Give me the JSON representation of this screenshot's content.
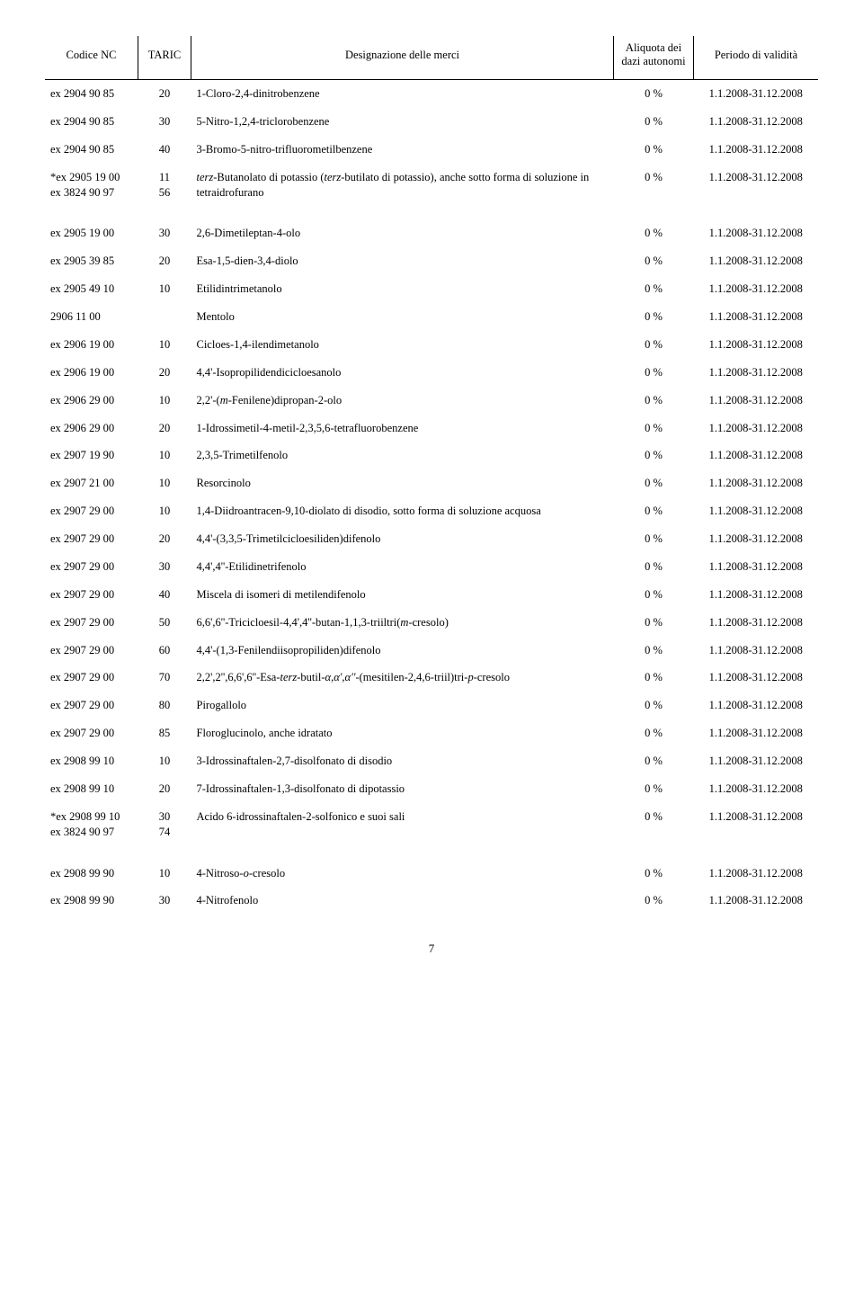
{
  "headers": {
    "nc": "Codice NC",
    "taric": "TARIC",
    "desc": "Designazione delle merci",
    "duty": "Aliquota dei dazi autonomi",
    "period": "Periodo di validità"
  },
  "rows": [
    {
      "nc": "ex 2904 90 85",
      "taric": "20",
      "desc": "1-Cloro-2,4-dinitrobenzene",
      "duty": "0 %",
      "period": "1.1.2008-31.12.2008"
    },
    {
      "nc": "ex 2904 90 85",
      "taric": "30",
      "desc": "5-Nitro-1,2,4-triclorobenzene",
      "duty": "0 %",
      "period": "1.1.2008-31.12.2008"
    },
    {
      "nc": "ex 2904 90 85",
      "taric": "40",
      "desc": "3-Bromo-5-nitro-trifluorometilbenzene",
      "duty": "0 %",
      "period": "1.1.2008-31.12.2008"
    },
    {
      "nc": "*ex 2905 19 00\nex 3824 90 97",
      "taric": "11\n56",
      "desc_html": "<span class='it'>terz</span>-Butanolato di potassio (<span class='it'>terz</span>-butilato di potassio), anche sotto forma di soluzione in tetraidrofurano",
      "duty": "0 %",
      "period": "1.1.2008-31.12.2008"
    },
    {
      "gap": true,
      "nc": "ex 2905 19 00",
      "taric": "30",
      "desc": "2,6-Dimetileptan-4-olo",
      "duty": "0 %",
      "period": "1.1.2008-31.12.2008"
    },
    {
      "nc": "ex 2905 39 85",
      "taric": "20",
      "desc": "Esa-1,5-dien-3,4-diolo",
      "duty": "0 %",
      "period": "1.1.2008-31.12.2008"
    },
    {
      "nc": "ex 2905 49 10",
      "taric": "10",
      "desc": "Etilidintrimetanolo",
      "duty": "0 %",
      "period": "1.1.2008-31.12.2008"
    },
    {
      "nc": "2906 11 00",
      "taric": "",
      "desc": "Mentolo",
      "duty": "0 %",
      "period": "1.1.2008-31.12.2008"
    },
    {
      "nc": "ex 2906 19 00",
      "taric": "10",
      "desc": "Cicloes-1,4-ilendimetanolo",
      "duty": "0 %",
      "period": "1.1.2008-31.12.2008"
    },
    {
      "nc": "ex 2906 19 00",
      "taric": "20",
      "desc": "4,4'-Isopropilidendicicloesanolo",
      "duty": "0 %",
      "period": "1.1.2008-31.12.2008"
    },
    {
      "nc": "ex 2906 29 00",
      "taric": "10",
      "desc_html": "2,2'-(<span class='it'>m</span>-Fenilene)dipropan-2-olo",
      "duty": "0 %",
      "period": "1.1.2008-31.12.2008"
    },
    {
      "nc": "ex 2906 29 00",
      "taric": "20",
      "desc": "1-Idrossimetil-4-metil-2,3,5,6-tetrafluorobenzene",
      "duty": "0 %",
      "period": "1.1.2008-31.12.2008"
    },
    {
      "nc": "ex 2907 19 90",
      "taric": "10",
      "desc": "2,3,5-Trimetilfenolo",
      "duty": "0 %",
      "period": "1.1.2008-31.12.2008"
    },
    {
      "nc": "ex 2907 21 00",
      "taric": "10",
      "desc": "Resorcinolo",
      "duty": "0 %",
      "period": "1.1.2008-31.12.2008"
    },
    {
      "nc": "ex 2907 29 00",
      "taric": "10",
      "desc": "1,4-Diidroantracen-9,10-diolato di disodio, sotto forma di soluzione acquosa",
      "duty": "0 %",
      "period": "1.1.2008-31.12.2008"
    },
    {
      "nc": "ex 2907 29 00",
      "taric": "20",
      "desc": "4,4'-(3,3,5-Trimetilcicloesiliden)difenolo",
      "duty": "0 %",
      "period": "1.1.2008-31.12.2008"
    },
    {
      "nc": "ex 2907 29 00",
      "taric": "30",
      "desc": "4,4',4''-Etilidinetrifenolo",
      "duty": "0 %",
      "period": "1.1.2008-31.12.2008"
    },
    {
      "nc": "ex 2907 29 00",
      "taric": "40",
      "desc": "Miscela di isomeri di metilendifenolo",
      "duty": "0 %",
      "period": "1.1.2008-31.12.2008"
    },
    {
      "nc": "ex 2907 29 00",
      "taric": "50",
      "desc_html": "6,6',6''-Tricicloesil-4,4',4''-butan-1,1,3-triiltri(<span class='it'>m</span>-cresolo)",
      "duty": "0 %",
      "period": "1.1.2008-31.12.2008"
    },
    {
      "nc": "ex 2907 29 00",
      "taric": "60",
      "desc": "4,4'-(1,3-Fenilendiisopropiliden)difenolo",
      "duty": "0 %",
      "period": "1.1.2008-31.12.2008"
    },
    {
      "nc": "ex 2907 29 00",
      "taric": "70",
      "desc_html": "2,2',2'',6,6',6''-Esa-<span class='it'>terz</span>-butil-<span class='it'>α,α',α''</span>-(mesitilen-2,4,6-triil)tri-<span class='it'>p</span>-cresolo",
      "duty": "0 %",
      "period": "1.1.2008-31.12.2008"
    },
    {
      "nc": "ex 2907 29 00",
      "taric": "80",
      "desc": "Pirogallolo",
      "duty": "0 %",
      "period": "1.1.2008-31.12.2008"
    },
    {
      "nc": "ex 2907 29 00",
      "taric": "85",
      "desc": "Floroglucinolo, anche idratato",
      "duty": "0 %",
      "period": "1.1.2008-31.12.2008"
    },
    {
      "nc": "ex 2908 99 10",
      "taric": "10",
      "desc": "3-Idrossinaftalen-2,7-disolfonato di disodio",
      "duty": "0 %",
      "period": "1.1.2008-31.12.2008"
    },
    {
      "nc": "ex 2908 99 10",
      "taric": "20",
      "desc": "7-Idrossinaftalen-1,3-disolfonato di dipotassio",
      "duty": "0 %",
      "period": "1.1.2008-31.12.2008"
    },
    {
      "nc": "*ex 2908 99 10\nex 3824 90 97",
      "taric": "30\n74",
      "desc": "Acido 6-idrossinaftalen-2-solfonico e suoi sali",
      "duty": "0 %",
      "period": "1.1.2008-31.12.2008"
    },
    {
      "gap": true,
      "nc": "ex 2908 99 90",
      "taric": "10",
      "desc_html": "4-Nitroso-<span class='it'>o</span>-cresolo",
      "duty": "0 %",
      "period": "1.1.2008-31.12.2008"
    },
    {
      "nc": "ex 2908 99 90",
      "taric": "30",
      "desc": "4-Nitrofenolo",
      "duty": "0 %",
      "period": "1.1.2008-31.12.2008"
    }
  ],
  "page_number": "7"
}
